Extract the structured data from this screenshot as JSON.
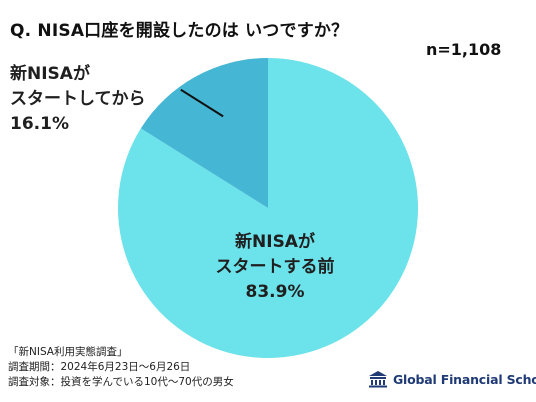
{
  "title": "Q. NISA口座を開設したのは いつですか？",
  "sample_size": "n=1,108",
  "chart_data": {
    "type": "pie",
    "title": "Q. NISA口座を開設したのは いつですか？",
    "slices": [
      {
        "label_lines": [
          "新NISAが",
          "スタートする前"
        ],
        "value": 83.9,
        "value_label": "83.9%",
        "color": "#6ce2ea"
      },
      {
        "label_lines": [
          "新NISAが",
          "スタートしてから"
        ],
        "value": 16.1,
        "value_label": "16.1%",
        "color": "#45b6d3"
      }
    ],
    "start": "12 o'clock",
    "direction": "clockwise",
    "legend": "none",
    "leader_line": true
  },
  "footnote": {
    "line1": "「新NISA利用実態調査」",
    "line2": "調査期間：2024年6月23日〜6月26日",
    "line3": "調査対象：投資を学んでいる10代〜70代の男女"
  },
  "brand": {
    "name": "Global Financial School",
    "logo_color": "#1f3a75",
    "icon": "school-building-icon"
  }
}
